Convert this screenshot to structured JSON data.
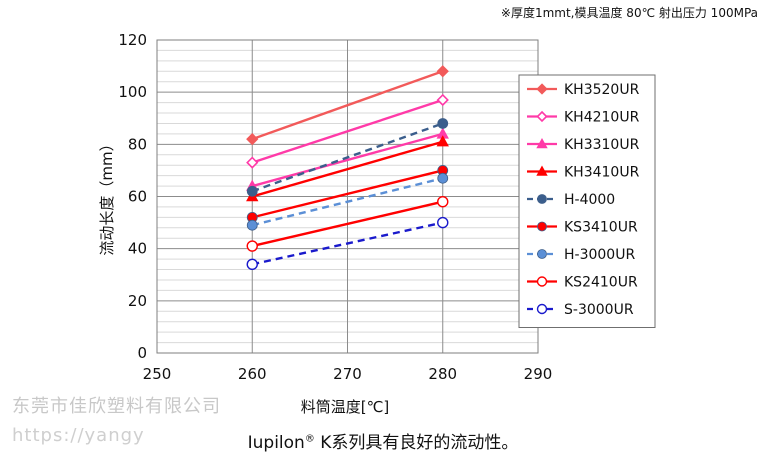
{
  "note": "※厚度1mmt,模具温度 80℃ 射出压力 100MPa",
  "watermark": {
    "company": "东莞市佳欣塑料有限公司",
    "url": "https://yangy"
  },
  "caption": {
    "brand": "Iupilon",
    "reg": "®",
    "rest": " K系列具有良好的流动性。"
  },
  "chart_data": {
    "type": "line",
    "xlabel": "料筒温度[℃]",
    "ylabel": "流动长度（mm）",
    "xlim": [
      250,
      290
    ],
    "ylim": [
      0,
      120
    ],
    "xticks": [
      "250",
      "260",
      "270",
      "280",
      "290"
    ],
    "yticks": [
      "0",
      "20",
      "40",
      "60",
      "80",
      "100",
      "120"
    ],
    "grid": true,
    "legend_position": "right",
    "series": [
      {
        "name": "KH3520UR",
        "color": "#f25a5a",
        "dash": "solid",
        "marker": "diamond-filled",
        "x": [
          260,
          280
        ],
        "y": [
          82,
          108
        ]
      },
      {
        "name": "KH4210UR",
        "color": "#ff3aa8",
        "dash": "solid",
        "marker": "diamond-open",
        "x": [
          260,
          280
        ],
        "y": [
          73,
          97
        ]
      },
      {
        "name": "KH3310UR",
        "color": "#ff3aa8",
        "dash": "solid",
        "marker": "triangle-filled",
        "x": [
          260,
          280
        ],
        "y": [
          64,
          84
        ]
      },
      {
        "name": "KH3410UR",
        "color": "#ff0000",
        "dash": "solid",
        "marker": "triangle-filled",
        "x": [
          260,
          280
        ],
        "y": [
          60,
          81
        ]
      },
      {
        "name": "H-4000",
        "color": "#3b5e8c",
        "dash": "dashed",
        "marker": "circle-filled",
        "x": [
          260,
          280
        ],
        "y": [
          62,
          88
        ]
      },
      {
        "name": "KS3410UR",
        "color": "#ff0000",
        "dash": "solid",
        "marker": "circle-filled",
        "x": [
          260,
          280
        ],
        "y": [
          52,
          70
        ]
      },
      {
        "name": "H-3000UR",
        "color": "#5b8fd6",
        "dash": "dashed",
        "marker": "circle-filled",
        "x": [
          260,
          280
        ],
        "y": [
          49,
          67
        ]
      },
      {
        "name": "KS2410UR",
        "color": "#ff0000",
        "dash": "solid",
        "marker": "circle-open",
        "x": [
          260,
          280
        ],
        "y": [
          41,
          58
        ]
      },
      {
        "name": "S-3000UR",
        "color": "#1a1acc",
        "dash": "dashed",
        "marker": "circle-open",
        "x": [
          260,
          280
        ],
        "y": [
          34,
          50
        ]
      }
    ]
  }
}
